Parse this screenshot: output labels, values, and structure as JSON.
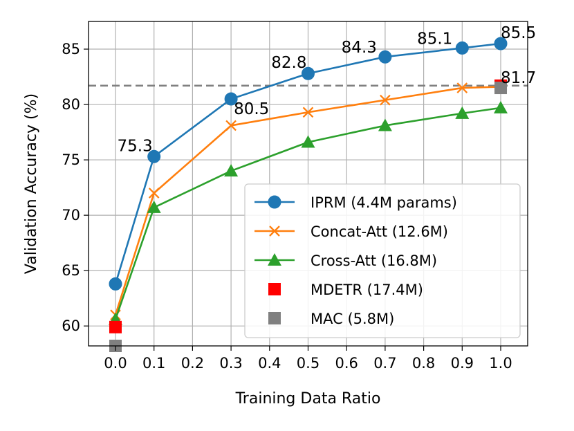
{
  "chart_data": {
    "type": "line",
    "title": "",
    "xlabel": "Training Data Ratio",
    "ylabel": "Validation Accuracy (%)",
    "xlim": [
      -0.07,
      1.07
    ],
    "ylim": [
      58.2,
      87.5
    ],
    "grid": true,
    "x_ticks": [
      0.0,
      0.1,
      0.2,
      0.3,
      0.4,
      0.5,
      0.6,
      0.7,
      0.8,
      0.9,
      1.0
    ],
    "x_tick_labels": [
      "0.0",
      "0.1",
      "0.2",
      "0.3",
      "0.4",
      "0.5",
      "0.6",
      "0.7",
      "0.8",
      "0.9",
      "1.0"
    ],
    "y_ticks": [
      60,
      65,
      70,
      75,
      80,
      85
    ],
    "y_tick_labels": [
      "60",
      "65",
      "70",
      "75",
      "80",
      "85"
    ],
    "reference_line": {
      "y": 81.7,
      "style": "dashed",
      "color": "#808080"
    },
    "series": [
      {
        "name": "IPRM (4.4M params)",
        "marker": "circle",
        "color": "#1f77b4",
        "x": [
          0.0,
          0.1,
          0.3,
          0.5,
          0.7,
          0.9,
          1.0
        ],
        "values": [
          63.8,
          75.3,
          80.5,
          82.8,
          84.3,
          85.1,
          85.5
        ]
      },
      {
        "name": "Concat-Att (12.6M)",
        "marker": "x",
        "color": "#ff7f0e",
        "x": [
          0.0,
          0.1,
          0.3,
          0.5,
          0.7,
          0.9,
          1.0
        ],
        "values": [
          61.0,
          72.0,
          78.1,
          79.3,
          80.4,
          81.5,
          81.6
        ]
      },
      {
        "name": "Cross-Att (16.8M)",
        "marker": "triangle",
        "color": "#2ca02c",
        "x": [
          0.0,
          0.1,
          0.3,
          0.5,
          0.7,
          0.9,
          1.0
        ],
        "values": [
          60.6,
          70.7,
          74.0,
          76.6,
          78.1,
          79.2,
          79.7
        ]
      },
      {
        "name": "MDETR (17.4M)",
        "marker": "square",
        "color": "#ff0000",
        "line": false,
        "x": [
          0.0,
          1.0
        ],
        "values": [
          59.9,
          81.7
        ]
      },
      {
        "name": "MAC (5.8M)",
        "marker": "square",
        "color": "#808080",
        "line": false,
        "x": [
          0.0,
          1.0
        ],
        "values": [
          58.2,
          81.5
        ]
      }
    ],
    "annotations": [
      {
        "text": "75.3",
        "x": 0.1,
        "y": 75.3,
        "anchor": "end",
        "dx": -2,
        "dy": -8
      },
      {
        "text": "80.5",
        "x": 0.3,
        "y": 80.5,
        "anchor": "start",
        "dx": 4,
        "dy": 22
      },
      {
        "text": "82.8",
        "x": 0.5,
        "y": 82.8,
        "anchor": "end",
        "dx": -2,
        "dy": -8
      },
      {
        "text": "84.3",
        "x": 0.7,
        "y": 84.3,
        "anchor": "end",
        "dx": -12,
        "dy": -6
      },
      {
        "text": "85.1",
        "x": 0.9,
        "y": 85.1,
        "anchor": "end",
        "dx": -14,
        "dy": -6
      },
      {
        "text": "85.5",
        "x": 1.0,
        "y": 85.5,
        "anchor": "start",
        "dx": 0,
        "dy": -8
      },
      {
        "text": "81.7",
        "x": 1.0,
        "y": 81.7,
        "anchor": "start",
        "dx": 0,
        "dy": -4
      }
    ],
    "legend": {
      "placement": "lower-right"
    }
  }
}
